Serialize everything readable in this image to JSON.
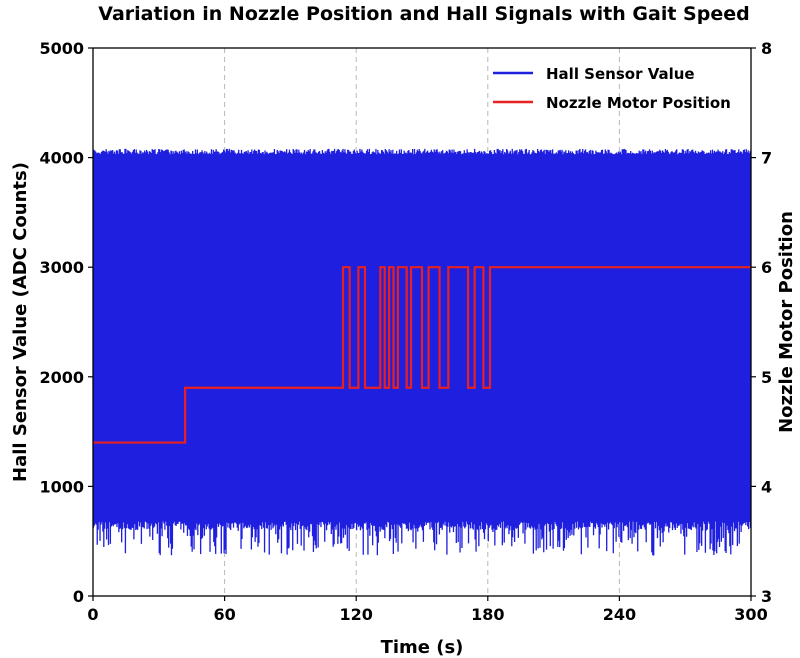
{
  "chart_data": {
    "type": "line",
    "title": "Variation in Nozzle Position and Hall Signals with Gait Speed",
    "xlabel": "Time (s)",
    "ylabel_left": "Hall Sensor Value (ADC Counts)",
    "ylabel_right": "Nozzle Motor Position",
    "xlim": [
      0,
      300
    ],
    "ylim_left": [
      0,
      5000
    ],
    "ylim_right": [
      3,
      8
    ],
    "x_ticks": [
      "0",
      "60",
      "120",
      "180",
      "240",
      "300"
    ],
    "y_left_ticks": [
      "0",
      "1000",
      "2000",
      "3000",
      "4000",
      "5000"
    ],
    "y_right_ticks": [
      "3",
      "4",
      "5",
      "6",
      "7",
      "8"
    ],
    "grid": "vertical dashed at x ticks",
    "legend_position": "top-right",
    "series": [
      {
        "name": "Hall Sensor Value",
        "axis": "left",
        "color": "#1f1fe0",
        "style": "dense oscillating band",
        "band_upper_approx": 4080,
        "band_lower_approx": 600,
        "lower_spikes_min_approx": 370,
        "notes": "signal oscillates rapidly between ~600 and ~4080 counts over the full 0-300 s range"
      },
      {
        "name": "Nozzle Motor Position",
        "axis": "right",
        "color": "#e8201e",
        "style": "step",
        "points": [
          [
            0,
            4.4
          ],
          [
            42,
            4.4
          ],
          [
            42,
            4.9
          ],
          [
            114,
            4.9
          ],
          [
            114,
            6.0
          ],
          [
            117,
            6.0
          ],
          [
            117,
            4.9
          ],
          [
            121,
            4.9
          ],
          [
            121,
            6.0
          ],
          [
            124,
            6.0
          ],
          [
            124,
            4.9
          ],
          [
            131,
            4.9
          ],
          [
            131,
            6.0
          ],
          [
            133,
            6.0
          ],
          [
            133,
            4.9
          ],
          [
            135,
            4.9
          ],
          [
            135,
            6.0
          ],
          [
            137,
            6.0
          ],
          [
            137,
            4.9
          ],
          [
            139,
            4.9
          ],
          [
            139,
            6.0
          ],
          [
            143,
            6.0
          ],
          [
            143,
            4.9
          ],
          [
            145,
            4.9
          ],
          [
            145,
            6.0
          ],
          [
            150,
            6.0
          ],
          [
            150,
            4.9
          ],
          [
            153,
            4.9
          ],
          [
            153,
            6.0
          ],
          [
            158,
            6.0
          ],
          [
            158,
            4.9
          ],
          [
            162,
            4.9
          ],
          [
            162,
            6.0
          ],
          [
            171,
            6.0
          ],
          [
            171,
            4.9
          ],
          [
            174,
            4.9
          ],
          [
            174,
            6.0
          ],
          [
            178,
            6.0
          ],
          [
            178,
            4.9
          ],
          [
            181,
            4.9
          ],
          [
            181,
            6.0
          ],
          [
            300,
            6.0
          ]
        ]
      }
    ]
  }
}
